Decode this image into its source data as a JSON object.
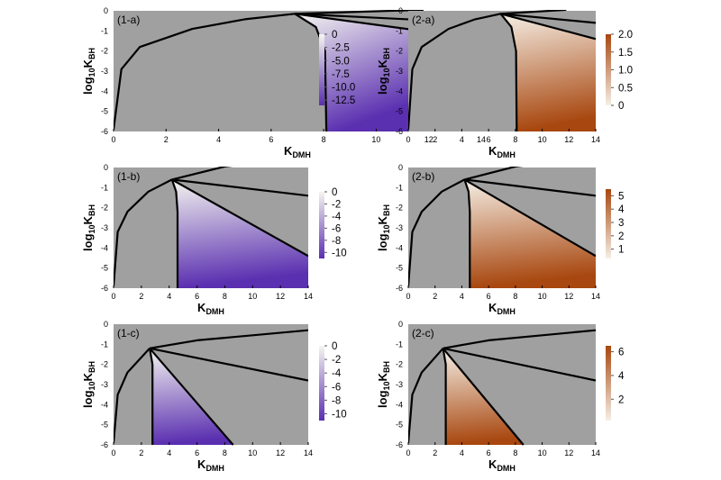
{
  "figure": {
    "panels": [
      {
        "label": "(1-a)",
        "colorbar": {
          "ticks": [
            "0",
            "-2.5",
            "-5.0",
            "-7.5",
            "-10.0",
            "-12.5"
          ]
        }
      },
      {
        "label": "(2-a)",
        "colorbar": {
          "ticks": [
            "2.0",
            "1.5",
            "1.0",
            "0.5",
            "0"
          ]
        }
      },
      {
        "label": "(1-b)",
        "colorbar": {
          "ticks": [
            "0",
            "-2",
            "-4",
            "-6",
            "-8",
            "-10"
          ]
        }
      },
      {
        "label": "(2-b)",
        "colorbar": {
          "ticks": [
            "5",
            "4",
            "3",
            "2",
            "1"
          ]
        }
      },
      {
        "label": "(1-c)",
        "colorbar": {
          "ticks": [
            "0",
            "-2",
            "-4",
            "-6",
            "-8",
            "-10"
          ]
        }
      },
      {
        "label": "(2-c)",
        "colorbar": {
          "ticks": [
            "6",
            "4",
            "2"
          ]
        }
      }
    ]
  },
  "chart_data": [
    {
      "type": "heatmap",
      "panel": "(1-a)",
      "xlabel": "K_DMH",
      "ylabel": "log10 K_BH",
      "xlim": [
        0,
        14
      ],
      "ylim": [
        -6,
        0
      ],
      "x_ticks": [
        "0",
        "2",
        "4",
        "6",
        "8",
        "10",
        "12",
        "14"
      ],
      "y_ticks": [
        "0",
        "-1",
        "-2",
        "-3",
        "-4",
        "-5",
        "-6"
      ],
      "colorbar_range": [
        -13.5,
        0
      ],
      "colormap": [
        "#f5f5f0",
        "#5a2fb0"
      ],
      "background_color": "#a0a0a0",
      "vertex": [
        6.9,
        -0.15
      ],
      "region_left_x": 8.1,
      "region_upper_edge": [
        [
          6.9,
          -0.15
        ],
        [
          14,
          -1.4
        ]
      ],
      "boundaries": [
        {
          "points": [
            [
              0,
              -5.9
            ],
            [
              0.3,
              -2.9
            ],
            [
              1,
              -1.8
            ],
            [
              3,
              -0.9
            ],
            [
              5,
              -0.42
            ],
            [
              6.9,
              -0.15
            ]
          ]
        },
        {
          "points": [
            [
              6.9,
              -0.15
            ],
            [
              11.8,
              0.05
            ]
          ]
        },
        {
          "points": [
            [
              6.9,
              -0.15
            ],
            [
              14,
              -0.6
            ]
          ]
        },
        {
          "points": [
            [
              6.9,
              -0.15
            ],
            [
              14,
              -1.4
            ]
          ]
        },
        {
          "points": [
            [
              6.9,
              -0.15
            ],
            [
              7.7,
              -0.8
            ],
            [
              8.05,
              -2
            ],
            [
              8.1,
              -6
            ]
          ]
        }
      ]
    },
    {
      "type": "heatmap",
      "panel": "(2-a)",
      "xlabel": "K_DMH",
      "ylabel": "log10 K_BH",
      "xlim": [
        0,
        14
      ],
      "ylim": [
        -6,
        0
      ],
      "x_ticks": [
        "0",
        "2",
        "4",
        "6",
        "8",
        "10",
        "12",
        "14"
      ],
      "y_ticks": [
        "0",
        "-1",
        "-2",
        "-3",
        "-4",
        "-5",
        "-6"
      ],
      "colorbar_range": [
        0,
        2.0
      ],
      "colormap": [
        "#f5efe6",
        "#a8470f"
      ],
      "background_color": "#a0a0a0",
      "vertex": [
        6.9,
        -0.15
      ],
      "region_left_x": 8.1,
      "region_upper_edge": [
        [
          6.9,
          -0.15
        ],
        [
          14,
          -1.4
        ]
      ],
      "boundaries": [
        {
          "points": [
            [
              0,
              -5.9
            ],
            [
              0.3,
              -2.9
            ],
            [
              1,
              -1.8
            ],
            [
              3,
              -0.9
            ],
            [
              5,
              -0.42
            ],
            [
              6.9,
              -0.15
            ]
          ]
        },
        {
          "points": [
            [
              6.9,
              -0.15
            ],
            [
              11.8,
              0.05
            ]
          ]
        },
        {
          "points": [
            [
              6.9,
              -0.15
            ],
            [
              14,
              -0.6
            ]
          ]
        },
        {
          "points": [
            [
              6.9,
              -0.15
            ],
            [
              14,
              -1.4
            ]
          ]
        },
        {
          "points": [
            [
              6.9,
              -0.15
            ],
            [
              7.7,
              -0.8
            ],
            [
              8.05,
              -2
            ],
            [
              8.1,
              -6
            ]
          ]
        }
      ]
    },
    {
      "type": "heatmap",
      "panel": "(1-b)",
      "xlabel": "K_DMH",
      "ylabel": "log10 K_BH",
      "xlim": [
        0,
        14
      ],
      "ylim": [
        -6,
        0
      ],
      "x_ticks": [
        "0",
        "2",
        "4",
        "6",
        "8",
        "10",
        "12",
        "14"
      ],
      "y_ticks": [
        "0",
        "-1",
        "-2",
        "-3",
        "-4",
        "-5",
        "-6"
      ],
      "colorbar_range": [
        -11,
        0
      ],
      "colormap": [
        "#f5f5f0",
        "#5a2fb0"
      ],
      "background_color": "#a0a0a0",
      "vertex": [
        4.2,
        -0.6
      ],
      "region_left_x": 4.6,
      "region_upper_edge": [
        [
          4.2,
          -0.6
        ],
        [
          14,
          -4.4
        ]
      ],
      "boundaries": [
        {
          "points": [
            [
              0,
              -5.9
            ],
            [
              0.3,
              -3.2
            ],
            [
              1,
              -2.2
            ],
            [
              2.5,
              -1.2
            ],
            [
              4.2,
              -0.6
            ]
          ]
        },
        {
          "points": [
            [
              4.2,
              -0.6
            ],
            [
              8,
              0.05
            ],
            [
              14,
              0.5
            ]
          ]
        },
        {
          "points": [
            [
              4.2,
              -0.6
            ],
            [
              14,
              -1.4
            ]
          ]
        },
        {
          "points": [
            [
              4.2,
              -0.6
            ],
            [
              14,
              -4.4
            ]
          ]
        },
        {
          "points": [
            [
              4.2,
              -0.6
            ],
            [
              4.5,
              -1.2
            ],
            [
              4.6,
              -2.2
            ],
            [
              4.6,
              -6
            ]
          ]
        }
      ]
    },
    {
      "type": "heatmap",
      "panel": "(2-b)",
      "xlabel": "K_DMH",
      "ylabel": "log10 K_BH",
      "xlim": [
        0,
        14
      ],
      "ylim": [
        -6,
        0
      ],
      "x_ticks": [
        "0",
        "2",
        "4",
        "6",
        "8",
        "10",
        "12",
        "14"
      ],
      "y_ticks": [
        "0",
        "-1",
        "-2",
        "-3",
        "-4",
        "-5",
        "-6"
      ],
      "colorbar_range": [
        0.3,
        5.5
      ],
      "colormap": [
        "#f5efe6",
        "#a8470f"
      ],
      "background_color": "#a0a0a0",
      "vertex": [
        4.2,
        -0.6
      ],
      "region_left_x": 4.6,
      "region_upper_edge": [
        [
          4.2,
          -0.6
        ],
        [
          14,
          -4.4
        ]
      ],
      "boundaries": [
        {
          "points": [
            [
              0,
              -5.9
            ],
            [
              0.3,
              -3.2
            ],
            [
              1,
              -2.2
            ],
            [
              2.5,
              -1.2
            ],
            [
              4.2,
              -0.6
            ]
          ]
        },
        {
          "points": [
            [
              4.2,
              -0.6
            ],
            [
              8,
              0.05
            ],
            [
              14,
              0.5
            ]
          ]
        },
        {
          "points": [
            [
              4.2,
              -0.6
            ],
            [
              14,
              -1.4
            ]
          ]
        },
        {
          "points": [
            [
              4.2,
              -0.6
            ],
            [
              14,
              -4.4
            ]
          ]
        },
        {
          "points": [
            [
              4.2,
              -0.6
            ],
            [
              4.5,
              -1.2
            ],
            [
              4.6,
              -2.2
            ],
            [
              4.6,
              -6
            ]
          ]
        }
      ]
    },
    {
      "type": "heatmap",
      "panel": "(1-c)",
      "xlabel": "K_DMH",
      "ylabel": "log10 K_BH",
      "xlim": [
        0,
        14
      ],
      "ylim": [
        -6,
        0
      ],
      "x_ticks": [
        "0",
        "2",
        "4",
        "6",
        "8",
        "10",
        "12",
        "14"
      ],
      "y_ticks": [
        "0",
        "-1",
        "-2",
        "-3",
        "-4",
        "-5",
        "-6"
      ],
      "colorbar_range": [
        -11,
        0
      ],
      "colormap": [
        "#f5f5f0",
        "#5a2fb0"
      ],
      "background_color": "#a0a0a0",
      "vertex": [
        2.6,
        -1.2
      ],
      "region_left_x": 2.8,
      "region_upper_edge": [
        [
          2.6,
          -1.2
        ],
        [
          8.6,
          -6
        ]
      ],
      "boundaries": [
        {
          "points": [
            [
              0,
              -5.9
            ],
            [
              0.3,
              -3.5
            ],
            [
              1,
              -2.4
            ],
            [
              2.6,
              -1.2
            ]
          ]
        },
        {
          "points": [
            [
              2.6,
              -1.2
            ],
            [
              6,
              -0.8
            ],
            [
              10,
              -0.55
            ],
            [
              14,
              -0.3
            ]
          ]
        },
        {
          "points": [
            [
              2.6,
              -1.2
            ],
            [
              14,
              -2.8
            ]
          ]
        },
        {
          "points": [
            [
              2.6,
              -1.2
            ],
            [
              8.6,
              -6
            ]
          ]
        },
        {
          "points": [
            [
              2.6,
              -1.2
            ],
            [
              2.8,
              -2
            ],
            [
              2.8,
              -6
            ]
          ]
        }
      ]
    },
    {
      "type": "heatmap",
      "panel": "(2-c)",
      "xlabel": "K_DMH",
      "ylabel": "log10 K_BH",
      "xlim": [
        0,
        14
      ],
      "ylim": [
        -6,
        0
      ],
      "x_ticks": [
        "0",
        "2",
        "4",
        "6",
        "8",
        "10",
        "12",
        "14"
      ],
      "y_ticks": [
        "0",
        "-1",
        "-2",
        "-3",
        "-4",
        "-5",
        "-6"
      ],
      "colorbar_range": [
        0.2,
        6.5
      ],
      "colormap": [
        "#f5efe6",
        "#a8470f"
      ],
      "background_color": "#a0a0a0",
      "vertex": [
        2.6,
        -1.2
      ],
      "region_left_x": 2.8,
      "region_upper_edge": [
        [
          2.6,
          -1.2
        ],
        [
          8.6,
          -6
        ]
      ],
      "boundaries": [
        {
          "points": [
            [
              0,
              -5.9
            ],
            [
              0.3,
              -3.5
            ],
            [
              1,
              -2.4
            ],
            [
              2.6,
              -1.2
            ]
          ]
        },
        {
          "points": [
            [
              2.6,
              -1.2
            ],
            [
              6,
              -0.8
            ],
            [
              10,
              -0.55
            ],
            [
              14,
              -0.3
            ]
          ]
        },
        {
          "points": [
            [
              2.6,
              -1.2
            ],
            [
              14,
              -2.8
            ]
          ]
        },
        {
          "points": [
            [
              2.6,
              -1.2
            ],
            [
              8.6,
              -6
            ]
          ]
        },
        {
          "points": [
            [
              2.6,
              -1.2
            ],
            [
              2.8,
              -2
            ],
            [
              2.8,
              -6
            ]
          ]
        }
      ]
    }
  ]
}
